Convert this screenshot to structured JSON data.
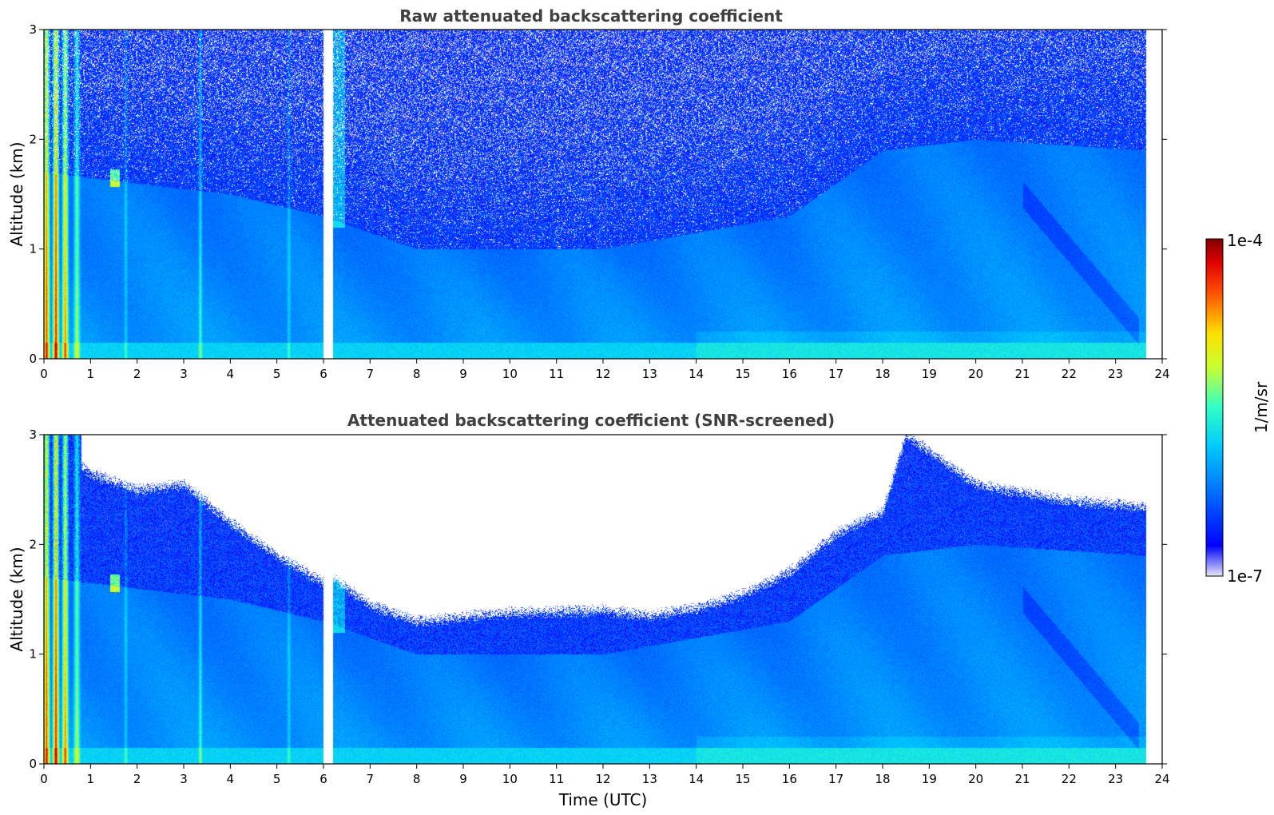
{
  "chart_data": [
    {
      "type": "heatmap",
      "title": "Raw attenuated backscattering coefficient",
      "xlabel": "",
      "ylabel": "Altitude (km)",
      "xlim": [
        0,
        24
      ],
      "ylim": [
        0,
        3
      ],
      "x_ticks": [
        "0",
        "1",
        "2",
        "3",
        "4",
        "5",
        "6",
        "7",
        "8",
        "9",
        "10",
        "11",
        "12",
        "13",
        "14",
        "15",
        "16",
        "17",
        "18",
        "19",
        "20",
        "21",
        "22",
        "23",
        "24"
      ],
      "y_ticks": [
        "0",
        "1",
        "2",
        "3"
      ],
      "data_time_range_utc": [
        0,
        23.65
      ],
      "gap_utc": [
        6.0,
        6.2
      ],
      "features": {
        "cloud_columns_utc": [
          0.05,
          0.25,
          0.45,
          0.7,
          1.75,
          3.35,
          5.25
        ],
        "boundary_layer_top_km": [
          {
            "t": 0,
            "z": 1.7
          },
          {
            "t": 2,
            "z": 1.6
          },
          {
            "t": 4,
            "z": 1.5
          },
          {
            "t": 6,
            "z": 1.3
          },
          {
            "t": 8,
            "z": 1.0
          },
          {
            "t": 12,
            "z": 1.0
          },
          {
            "t": 16,
            "z": 1.3
          },
          {
            "t": 18,
            "z": 1.9
          },
          {
            "t": 20,
            "z": 2.0
          },
          {
            "t": 23.6,
            "z": 1.9
          }
        ],
        "noise_level": "high above boundary layer",
        "dense_cloud_t_1_5_z_1_65": true
      }
    },
    {
      "type": "heatmap",
      "title": "Attenuated backscattering coefficient (SNR-screened)",
      "xlabel": "Time (UTC)",
      "ylabel": "Altitude (km)",
      "xlim": [
        0,
        24
      ],
      "ylim": [
        0,
        3
      ],
      "x_ticks": [
        "0",
        "1",
        "2",
        "3",
        "4",
        "5",
        "6",
        "7",
        "8",
        "9",
        "10",
        "11",
        "12",
        "13",
        "14",
        "15",
        "16",
        "17",
        "18",
        "19",
        "20",
        "21",
        "22",
        "23",
        "24"
      ],
      "y_ticks": [
        "0",
        "1",
        "2",
        "3"
      ],
      "data_time_range_utc": [
        0,
        23.65
      ],
      "gap_utc": [
        6.0,
        6.2
      ],
      "screened_top_km": [
        {
          "t": 0,
          "z": 3.0
        },
        {
          "t": 1,
          "z": 2.65
        },
        {
          "t": 2,
          "z": 2.5
        },
        {
          "t": 3,
          "z": 2.55
        },
        {
          "t": 4,
          "z": 2.2
        },
        {
          "t": 5,
          "z": 1.9
        },
        {
          "t": 6,
          "z": 1.65
        },
        {
          "t": 6.2,
          "z": 1.7
        },
        {
          "t": 7,
          "z": 1.45
        },
        {
          "t": 8,
          "z": 1.3
        },
        {
          "t": 10,
          "z": 1.38
        },
        {
          "t": 12,
          "z": 1.4
        },
        {
          "t": 13,
          "z": 1.35
        },
        {
          "t": 14,
          "z": 1.42
        },
        {
          "t": 15,
          "z": 1.55
        },
        {
          "t": 16,
          "z": 1.75
        },
        {
          "t": 17,
          "z": 2.1
        },
        {
          "t": 18,
          "z": 2.3
        },
        {
          "t": 18.5,
          "z": 3.0
        },
        {
          "t": 19.5,
          "z": 2.7
        },
        {
          "t": 20,
          "z": 2.55
        },
        {
          "t": 22,
          "z": 2.4
        },
        {
          "t": 23.6,
          "z": 2.35
        }
      ]
    }
  ],
  "colorbar": {
    "label": "1/m/sr",
    "max_label": "1e-4",
    "min_label": "1e-7",
    "scale": "log",
    "range": [
      1e-07,
      0.0001
    ],
    "colormap": "jet"
  }
}
